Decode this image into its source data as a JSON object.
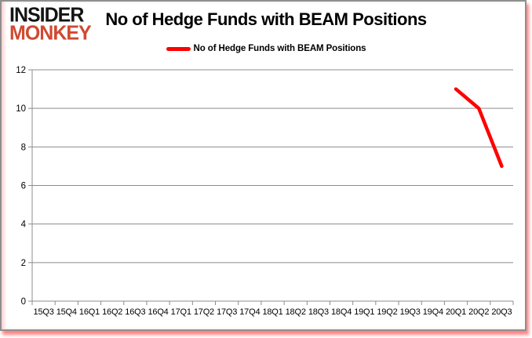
{
  "logo": {
    "line1": "INSIDER",
    "line2": "MONKEY"
  },
  "header": {
    "title": "No of Hedge Funds with BEAM Positions"
  },
  "legend": {
    "label": "No of Hedge Funds with BEAM Positions"
  },
  "colors": {
    "line": "#fe0000",
    "grid": "#8c8c8c",
    "axis": "#8c8c8c",
    "tick_label": "#000000",
    "frame_border": "#8f8f8f",
    "logo_black": "#141414",
    "logo_red": "#cf4a32",
    "shadow_red": "#ff1e1e"
  },
  "chart_data": {
    "type": "line",
    "title": "No of Hedge Funds with BEAM Positions",
    "categories": [
      "15Q3",
      "15Q4",
      "16Q1",
      "16Q2",
      "16Q3",
      "16Q4",
      "17Q1",
      "17Q2",
      "17Q3",
      "17Q4",
      "18Q1",
      "18Q2",
      "18Q3",
      "18Q4",
      "19Q1",
      "19Q2",
      "19Q3",
      "19Q4",
      "20Q1",
      "20Q2",
      "20Q3"
    ],
    "series": [
      {
        "name": "No of Hedge Funds with BEAM Positions",
        "color": "#fe0000",
        "values": [
          null,
          null,
          null,
          null,
          null,
          null,
          null,
          null,
          null,
          null,
          null,
          null,
          null,
          null,
          null,
          null,
          null,
          null,
          11,
          10,
          7
        ]
      }
    ],
    "xlabel": "",
    "ylabel": "",
    "ylim": [
      0,
      12
    ],
    "ytick_step": 2,
    "grid": true,
    "legend_position": "top"
  }
}
